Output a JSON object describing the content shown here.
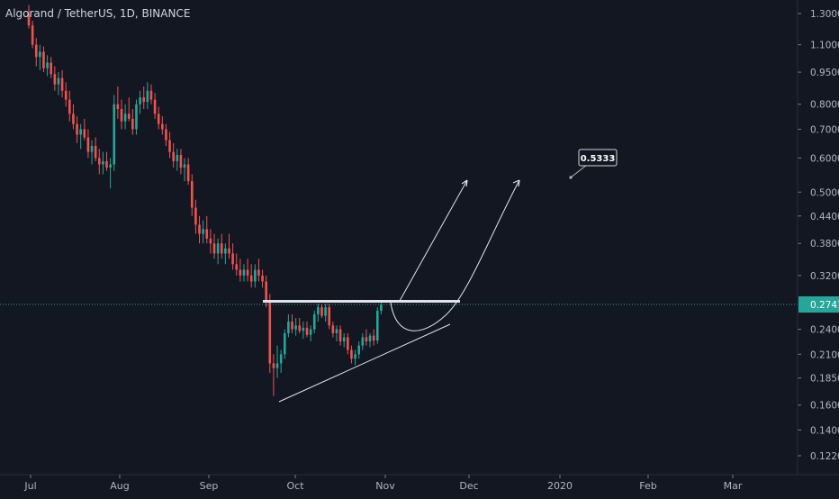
{
  "header": {
    "title": "Algorand / TetherUS, 1D, BINANCE"
  },
  "colors": {
    "background": "#131722",
    "up": "#26a69a",
    "down": "#ef5350",
    "price_line": "#26a69a",
    "axis_text": "#b2b5be",
    "drawing": "#e0e3eb"
  },
  "chart_data": {
    "type": "candlestick",
    "y_scale": "log",
    "ylim": [
      0.11,
      1.4
    ],
    "y_ticks": [
      "1.3000",
      "1.1000",
      "0.9500",
      "0.8000",
      "0.7000",
      "0.6000",
      "0.5000",
      "0.4400",
      "0.3800",
      "0.3200",
      "0.2741",
      "0.2400",
      "0.2100",
      "0.1850",
      "0.1600",
      "0.1400",
      "0.1220"
    ],
    "x_ticks": [
      "Jul",
      "Aug",
      "Sep",
      "Oct",
      "Nov",
      "Dec",
      "2020",
      "Feb",
      "Mar"
    ],
    "last_price": 0.2741,
    "candles": [
      {
        "o": 1.3,
        "h": 1.36,
        "l": 1.2,
        "c": 1.22
      },
      {
        "o": 1.22,
        "h": 1.25,
        "l": 1.08,
        "c": 1.1
      },
      {
        "o": 1.1,
        "h": 1.14,
        "l": 0.98,
        "c": 1.03
      },
      {
        "o": 1.03,
        "h": 1.1,
        "l": 0.96,
        "c": 1.06
      },
      {
        "o": 1.06,
        "h": 1.09,
        "l": 0.95,
        "c": 0.97
      },
      {
        "o": 0.97,
        "h": 1.04,
        "l": 0.93,
        "c": 1.0
      },
      {
        "o": 1.0,
        "h": 1.03,
        "l": 0.92,
        "c": 0.94
      },
      {
        "o": 0.94,
        "h": 0.98,
        "l": 0.86,
        "c": 0.89
      },
      {
        "o": 0.89,
        "h": 0.95,
        "l": 0.84,
        "c": 0.92
      },
      {
        "o": 0.92,
        "h": 0.96,
        "l": 0.83,
        "c": 0.86
      },
      {
        "o": 0.86,
        "h": 0.9,
        "l": 0.79,
        "c": 0.82
      },
      {
        "o": 0.82,
        "h": 0.86,
        "l": 0.73,
        "c": 0.76
      },
      {
        "o": 0.76,
        "h": 0.8,
        "l": 0.7,
        "c": 0.72
      },
      {
        "o": 0.72,
        "h": 0.75,
        "l": 0.65,
        "c": 0.68
      },
      {
        "o": 0.68,
        "h": 0.72,
        "l": 0.63,
        "c": 0.7
      },
      {
        "o": 0.7,
        "h": 0.74,
        "l": 0.66,
        "c": 0.67
      },
      {
        "o": 0.67,
        "h": 0.7,
        "l": 0.6,
        "c": 0.62
      },
      {
        "o": 0.62,
        "h": 0.66,
        "l": 0.58,
        "c": 0.64
      },
      {
        "o": 0.64,
        "h": 0.67,
        "l": 0.59,
        "c": 0.6
      },
      {
        "o": 0.6,
        "h": 0.63,
        "l": 0.55,
        "c": 0.58
      },
      {
        "o": 0.58,
        "h": 0.62,
        "l": 0.55,
        "c": 0.59
      },
      {
        "o": 0.59,
        "h": 0.62,
        "l": 0.56,
        "c": 0.57
      },
      {
        "o": 0.57,
        "h": 0.6,
        "l": 0.51,
        "c": 0.58
      },
      {
        "o": 0.58,
        "h": 0.84,
        "l": 0.56,
        "c": 0.8
      },
      {
        "o": 0.8,
        "h": 0.88,
        "l": 0.74,
        "c": 0.78
      },
      {
        "o": 0.78,
        "h": 0.82,
        "l": 0.7,
        "c": 0.73
      },
      {
        "o": 0.73,
        "h": 0.8,
        "l": 0.7,
        "c": 0.76
      },
      {
        "o": 0.76,
        "h": 0.83,
        "l": 0.73,
        "c": 0.74
      },
      {
        "o": 0.74,
        "h": 0.78,
        "l": 0.68,
        "c": 0.7
      },
      {
        "o": 0.7,
        "h": 0.82,
        "l": 0.68,
        "c": 0.8
      },
      {
        "o": 0.8,
        "h": 0.86,
        "l": 0.76,
        "c": 0.83
      },
      {
        "o": 0.83,
        "h": 0.88,
        "l": 0.78,
        "c": 0.81
      },
      {
        "o": 0.81,
        "h": 0.9,
        "l": 0.78,
        "c": 0.86
      },
      {
        "o": 0.86,
        "h": 0.89,
        "l": 0.8,
        "c": 0.82
      },
      {
        "o": 0.82,
        "h": 0.85,
        "l": 0.74,
        "c": 0.76
      },
      {
        "o": 0.76,
        "h": 0.79,
        "l": 0.7,
        "c": 0.72
      },
      {
        "o": 0.72,
        "h": 0.75,
        "l": 0.68,
        "c": 0.7
      },
      {
        "o": 0.7,
        "h": 0.72,
        "l": 0.64,
        "c": 0.66
      },
      {
        "o": 0.66,
        "h": 0.69,
        "l": 0.6,
        "c": 0.62
      },
      {
        "o": 0.62,
        "h": 0.65,
        "l": 0.57,
        "c": 0.59
      },
      {
        "o": 0.59,
        "h": 0.63,
        "l": 0.56,
        "c": 0.61
      },
      {
        "o": 0.61,
        "h": 0.63,
        "l": 0.55,
        "c": 0.57
      },
      {
        "o": 0.57,
        "h": 0.6,
        "l": 0.53,
        "c": 0.58
      },
      {
        "o": 0.58,
        "h": 0.6,
        "l": 0.52,
        "c": 0.53
      },
      {
        "o": 0.53,
        "h": 0.55,
        "l": 0.44,
        "c": 0.46
      },
      {
        "o": 0.46,
        "h": 0.48,
        "l": 0.4,
        "c": 0.42
      },
      {
        "o": 0.42,
        "h": 0.44,
        "l": 0.38,
        "c": 0.4
      },
      {
        "o": 0.4,
        "h": 0.43,
        "l": 0.38,
        "c": 0.41
      },
      {
        "o": 0.41,
        "h": 0.44,
        "l": 0.38,
        "c": 0.39
      },
      {
        "o": 0.39,
        "h": 0.41,
        "l": 0.36,
        "c": 0.38
      },
      {
        "o": 0.38,
        "h": 0.4,
        "l": 0.35,
        "c": 0.36
      },
      {
        "o": 0.36,
        "h": 0.39,
        "l": 0.34,
        "c": 0.38
      },
      {
        "o": 0.38,
        "h": 0.4,
        "l": 0.35,
        "c": 0.36
      },
      {
        "o": 0.36,
        "h": 0.38,
        "l": 0.34,
        "c": 0.37
      },
      {
        "o": 0.37,
        "h": 0.4,
        "l": 0.35,
        "c": 0.36
      },
      {
        "o": 0.36,
        "h": 0.38,
        "l": 0.33,
        "c": 0.34
      },
      {
        "o": 0.34,
        "h": 0.36,
        "l": 0.32,
        "c": 0.33
      },
      {
        "o": 0.33,
        "h": 0.35,
        "l": 0.31,
        "c": 0.32
      },
      {
        "o": 0.32,
        "h": 0.34,
        "l": 0.31,
        "c": 0.33
      },
      {
        "o": 0.33,
        "h": 0.35,
        "l": 0.31,
        "c": 0.32
      },
      {
        "o": 0.32,
        "h": 0.34,
        "l": 0.3,
        "c": 0.31
      },
      {
        "o": 0.31,
        "h": 0.34,
        "l": 0.3,
        "c": 0.33
      },
      {
        "o": 0.33,
        "h": 0.35,
        "l": 0.31,
        "c": 0.32
      },
      {
        "o": 0.32,
        "h": 0.33,
        "l": 0.3,
        "c": 0.31
      },
      {
        "o": 0.31,
        "h": 0.32,
        "l": 0.27,
        "c": 0.28
      },
      {
        "o": 0.28,
        "h": 0.29,
        "l": 0.19,
        "c": 0.2
      },
      {
        "o": 0.2,
        "h": 0.21,
        "l": 0.168,
        "c": 0.195
      },
      {
        "o": 0.195,
        "h": 0.22,
        "l": 0.185,
        "c": 0.2
      },
      {
        "o": 0.2,
        "h": 0.215,
        "l": 0.19,
        "c": 0.21
      },
      {
        "o": 0.21,
        "h": 0.24,
        "l": 0.205,
        "c": 0.235
      },
      {
        "o": 0.235,
        "h": 0.26,
        "l": 0.23,
        "c": 0.25
      },
      {
        "o": 0.25,
        "h": 0.26,
        "l": 0.235,
        "c": 0.24
      },
      {
        "o": 0.24,
        "h": 0.255,
        "l": 0.232,
        "c": 0.245
      },
      {
        "o": 0.245,
        "h": 0.255,
        "l": 0.235,
        "c": 0.238
      },
      {
        "o": 0.238,
        "h": 0.25,
        "l": 0.228,
        "c": 0.242
      },
      {
        "o": 0.242,
        "h": 0.25,
        "l": 0.23,
        "c": 0.233
      },
      {
        "o": 0.233,
        "h": 0.245,
        "l": 0.225,
        "c": 0.24
      },
      {
        "o": 0.24,
        "h": 0.265,
        "l": 0.235,
        "c": 0.26
      },
      {
        "o": 0.26,
        "h": 0.275,
        "l": 0.25,
        "c": 0.27
      },
      {
        "o": 0.27,
        "h": 0.275,
        "l": 0.255,
        "c": 0.258
      },
      {
        "o": 0.258,
        "h": 0.275,
        "l": 0.25,
        "c": 0.27
      },
      {
        "o": 0.27,
        "h": 0.275,
        "l": 0.24,
        "c": 0.245
      },
      {
        "o": 0.245,
        "h": 0.25,
        "l": 0.23,
        "c": 0.235
      },
      {
        "o": 0.235,
        "h": 0.245,
        "l": 0.225,
        "c": 0.24
      },
      {
        "o": 0.24,
        "h": 0.245,
        "l": 0.22,
        "c": 0.225
      },
      {
        "o": 0.225,
        "h": 0.235,
        "l": 0.218,
        "c": 0.23
      },
      {
        "o": 0.23,
        "h": 0.235,
        "l": 0.21,
        "c": 0.215
      },
      {
        "o": 0.215,
        "h": 0.22,
        "l": 0.2,
        "c": 0.205
      },
      {
        "o": 0.205,
        "h": 0.215,
        "l": 0.198,
        "c": 0.21
      },
      {
        "o": 0.21,
        "h": 0.225,
        "l": 0.205,
        "c": 0.22
      },
      {
        "o": 0.22,
        "h": 0.235,
        "l": 0.215,
        "c": 0.23
      },
      {
        "o": 0.23,
        "h": 0.24,
        "l": 0.22,
        "c": 0.225
      },
      {
        "o": 0.225,
        "h": 0.235,
        "l": 0.218,
        "c": 0.232
      },
      {
        "o": 0.232,
        "h": 0.24,
        "l": 0.22,
        "c": 0.226
      },
      {
        "o": 0.226,
        "h": 0.27,
        "l": 0.222,
        "c": 0.265
      },
      {
        "o": 0.265,
        "h": 0.28,
        "l": 0.26,
        "c": 0.2741
      }
    ],
    "annotations": {
      "callout_label": "0.5333"
    }
  }
}
